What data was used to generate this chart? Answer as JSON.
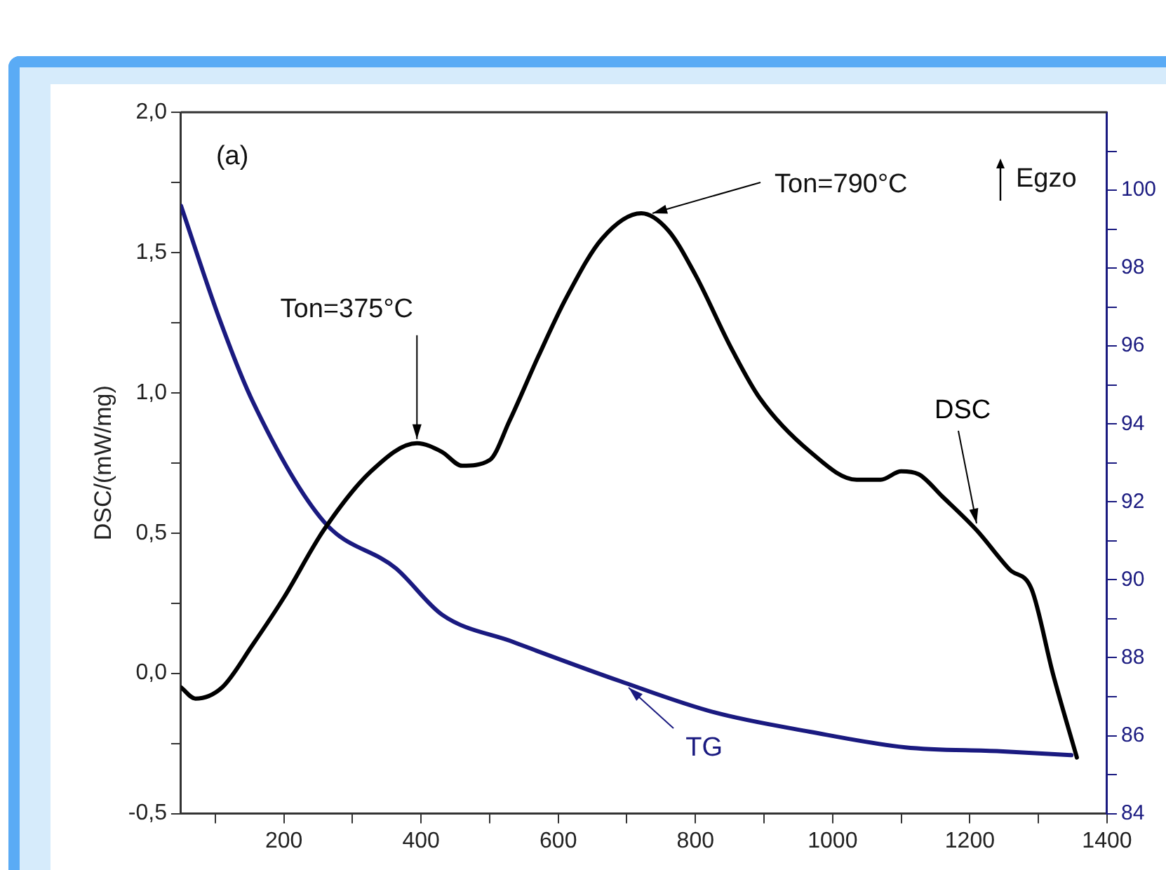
{
  "chart_data": {
    "type": "line",
    "ylabel": "DSC/(mW/mg)",
    "xlim": [
      50,
      1400
    ],
    "xticks": [
      {
        "value": 100,
        "label": null
      },
      200,
      {
        "value": 300,
        "label": null
      },
      400,
      {
        "value": 500,
        "label": null
      },
      600,
      {
        "value": 700,
        "label": null
      },
      800,
      {
        "value": 900,
        "label": null
      },
      1000,
      {
        "value": 1100,
        "label": null
      },
      1200,
      {
        "value": 1300,
        "label": null
      },
      1400
    ],
    "ylim": [
      -0.5,
      2.0
    ],
    "yticks": [
      {
        "value": -0.5,
        "label": "-0,5"
      },
      {
        "value": -0.25,
        "label": null
      },
      {
        "value": 0,
        "label": "0,0"
      },
      {
        "value": 0.25,
        "label": null
      },
      {
        "value": 0.5,
        "label": "0,5"
      },
      {
        "value": 0.75,
        "label": null
      },
      {
        "value": 1.0,
        "label": "1,0"
      },
      {
        "value": 1.25,
        "label": null
      },
      {
        "value": 1.5,
        "label": "1,5"
      },
      {
        "value": 1.75,
        "label": null
      },
      {
        "value": 2.0,
        "label": "2,0"
      }
    ],
    "y2lim": [
      84,
      102
    ],
    "y2ticks": [
      84,
      {
        "value": 85,
        "label": null
      },
      86,
      {
        "value": 87,
        "label": null
      },
      88,
      {
        "value": 89,
        "label": null
      },
      90,
      {
        "value": 91,
        "label": null
      },
      92,
      {
        "value": 93,
        "label": null
      },
      94,
      {
        "value": 95,
        "label": null
      },
      96,
      {
        "value": 97,
        "label": null
      },
      98,
      {
        "value": 99,
        "label": null
      },
      100,
      {
        "value": 101,
        "label": null
      }
    ],
    "series": [
      {
        "name": "DSC",
        "color": "#000000",
        "x": [
          50,
          71,
          110,
          154,
          200,
          258,
          327,
          394,
          430,
          460,
          500,
          529,
          571,
          612,
          664,
          721,
          760,
          800,
          852,
          894,
          967,
          1035,
          1070,
          1100,
          1125,
          1160,
          1210,
          1258,
          1290,
          1321,
          1356
        ],
        "values": [
          -0.05,
          -0.09,
          -0.05,
          0.1,
          0.27,
          0.51,
          0.72,
          0.82,
          0.79,
          0.74,
          0.76,
          0.9,
          1.13,
          1.34,
          1.55,
          1.64,
          1.58,
          1.42,
          1.16,
          0.98,
          0.79,
          0.69,
          0.69,
          0.72,
          0.71,
          0.63,
          0.51,
          0.37,
          0.3,
          0.0,
          -0.3
        ]
      },
      {
        "name": "TG",
        "color": "#1a1a80",
        "axis": "y2",
        "x": [
          50,
          106,
          154,
          258,
          363,
          431,
          535,
          550,
          690,
          827,
          967,
          1106,
          1244,
          1348
        ],
        "values": [
          99.6,
          96.7,
          94.6,
          91.5,
          90.3,
          89.1,
          88.4,
          88.3,
          87.4,
          86.6,
          86.1,
          85.7,
          85.6,
          85.5
        ]
      }
    ],
    "annotations": [
      "(a)",
      {
        "text": "Ton=375°C",
        "x": 394,
        "y": 0.82
      },
      {
        "text": "Ton=790°C",
        "x": 721,
        "y": 1.64
      },
      "Egzo"
    ],
    "legend": false,
    "marker": "none",
    "line_style": "solid",
    "grid": false
  }
}
